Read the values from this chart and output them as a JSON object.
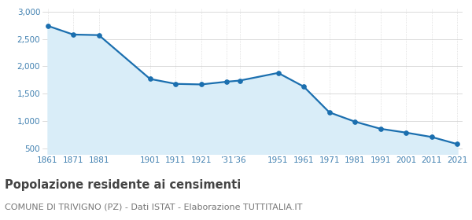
{
  "years": [
    1861,
    1871,
    1881,
    1901,
    1911,
    1921,
    1931,
    1936,
    1951,
    1961,
    1971,
    1981,
    1991,
    2001,
    2011,
    2021
  ],
  "xtick_positions": [
    1861,
    1871,
    1881,
    1901,
    1911,
    1921,
    1931,
    1936,
    1951,
    1961,
    1971,
    1981,
    1991,
    2001,
    2011,
    2021
  ],
  "xtick_labels": [
    "1861",
    "1871",
    "1881",
    "1901",
    "1911",
    "1921",
    "’31",
    "’36",
    "1951",
    "1961",
    "1971",
    "1981",
    "1991",
    "2001",
    "2011",
    "2021"
  ],
  "population": [
    2740,
    2580,
    2570,
    1770,
    1680,
    1670,
    1720,
    1740,
    1880,
    1630,
    1160,
    990,
    860,
    790,
    710,
    580
  ],
  "line_color": "#1b6faf",
  "fill_color": "#d9edf8",
  "marker": "o",
  "marker_size": 4,
  "ylim": [
    400,
    3050
  ],
  "yticks": [
    500,
    1000,
    1500,
    2000,
    2500,
    3000
  ],
  "ytick_labels": [
    "500",
    "1,000",
    "1,500",
    "2,000",
    "2,500",
    "3,000"
  ],
  "grid_color": "#cccccc",
  "background_color": "#ffffff",
  "title": "Popolazione residente ai censimenti",
  "subtitle": "COMUNE DI TRIVIGNO (PZ) - Dati ISTAT - Elaborazione TUTTITALIA.IT",
  "title_fontsize": 10.5,
  "subtitle_fontsize": 8,
  "tick_label_color": "#4080b0",
  "tick_fontsize": 7.5,
  "fill_baseline": 400
}
